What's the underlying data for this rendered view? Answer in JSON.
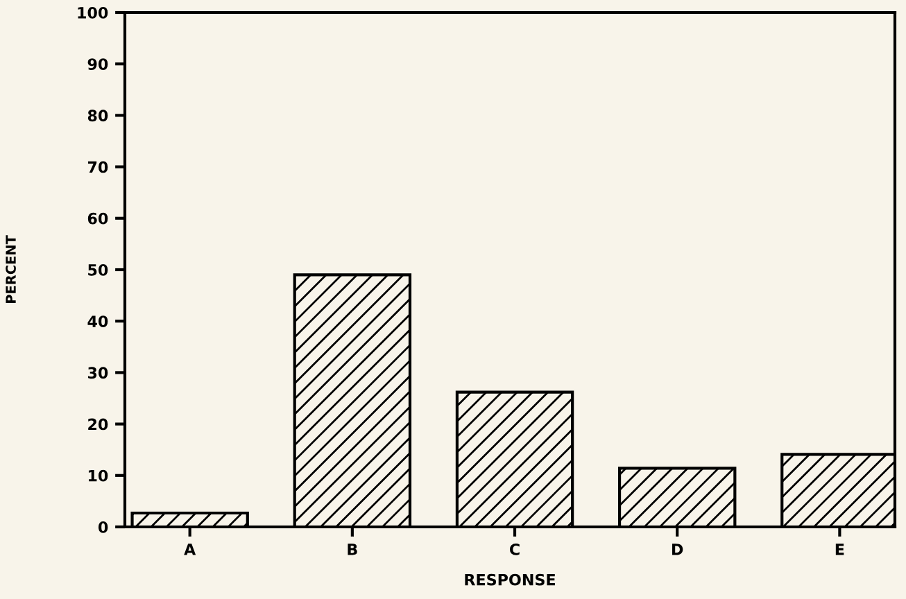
{
  "chart_data": {
    "type": "bar",
    "xlabel": "RESPONSE",
    "ylabel": "PERCENT",
    "categories": [
      "A",
      "B",
      "C",
      "D",
      "E"
    ],
    "values": [
      2.7,
      49,
      26.2,
      11.4,
      14.1
    ],
    "color": "#000000",
    "ylim": [
      0,
      100
    ],
    "yticks": [
      0,
      10,
      20,
      30,
      40,
      50,
      60,
      70,
      80,
      90,
      100
    ],
    "grid": false
  }
}
